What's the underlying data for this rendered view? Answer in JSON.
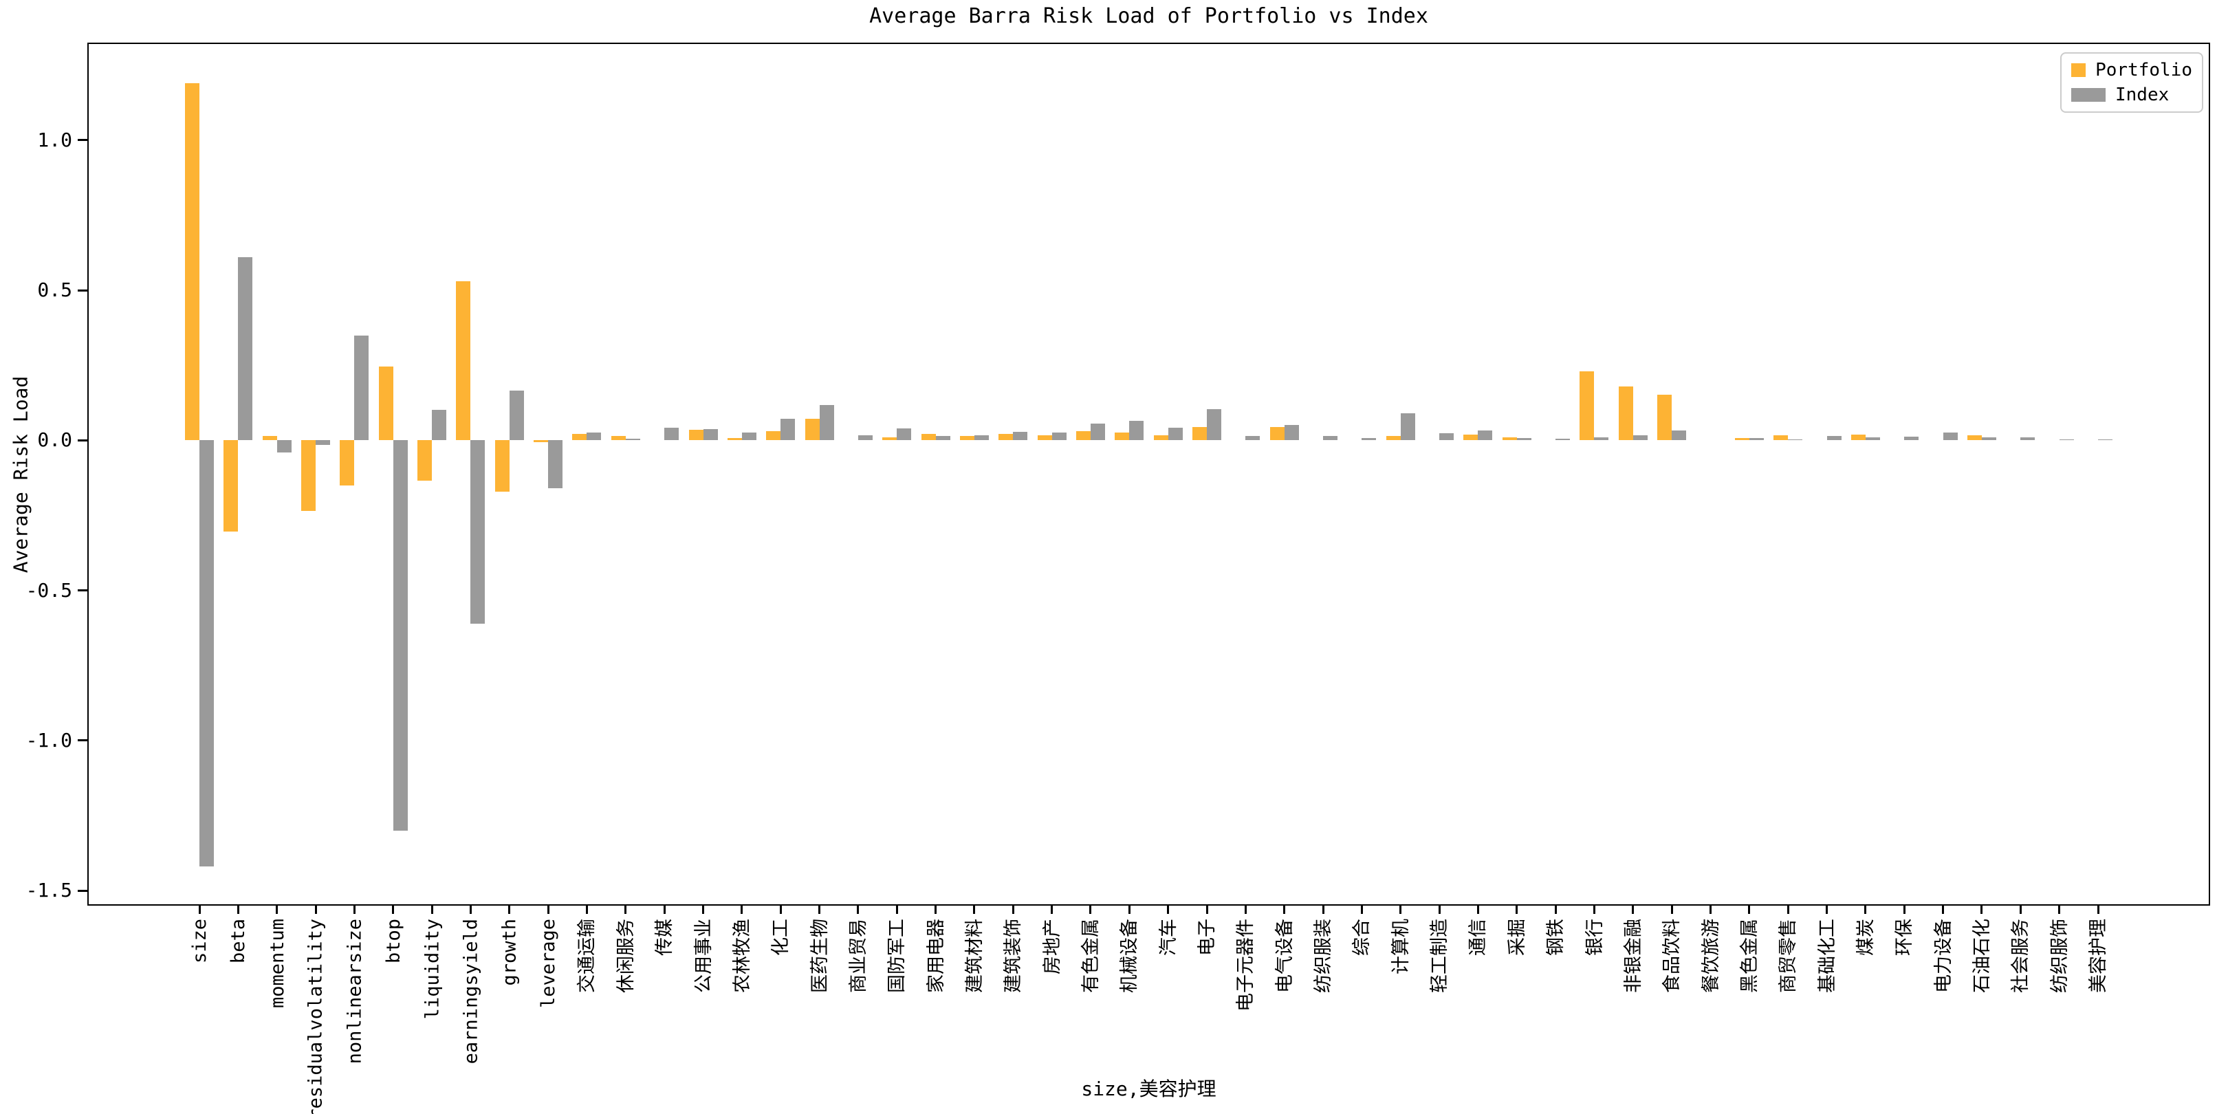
{
  "title": "Average Barra Risk Load of Portfolio vs Index",
  "legend": {
    "portfolio_label": "Portfolio",
    "index_label": "Index"
  },
  "colors": {
    "portfolio": "#FDB334",
    "index": "#9A9A9A",
    "axis": "#000000",
    "legend_border": "#cccccc"
  },
  "chart_data": {
    "type": "bar",
    "title": "Average Barra Risk Load of Portfolio vs Index",
    "xlabel": "size,美容护理",
    "ylabel": "Average Risk Load",
    "ylim": [
      -1.55,
      1.325
    ],
    "yticks": [
      1.0,
      0.5,
      0.0,
      -0.5,
      -1.0,
      -1.5
    ],
    "grid": false,
    "legend_position": "upper right",
    "categories": [
      "size",
      "beta",
      "momentum",
      "residualvolatility",
      "nonlinearsize",
      "btop",
      "liquidity",
      "earningsyield",
      "growth",
      "leverage",
      "交通运输",
      "休闲服务",
      "传媒",
      "公用事业",
      "农林牧渔",
      "化工",
      "医药生物",
      "商业贸易",
      "国防军工",
      "家用电器",
      "建筑材料",
      "建筑装饰",
      "房地产",
      "有色金属",
      "机械设备",
      "汽车",
      "电子",
      "电子元器件",
      "电气设备",
      "纺织服装",
      "综合",
      "计算机",
      "轻工制造",
      "通信",
      "采掘",
      "钢铁",
      "银行",
      "非银金融",
      "食品饮料",
      "餐饮旅游",
      "黑色金属",
      "商贸零售",
      "基础化工",
      "煤炭",
      "环保",
      "电力设备",
      "石油石化",
      "社会服务",
      "纺织服饰",
      "美容护理"
    ],
    "series": [
      {
        "name": "Portfolio",
        "color": "#FDB334",
        "values": [
          1.19,
          -0.303,
          0.015,
          -0.235,
          -0.15,
          0.245,
          -0.134,
          0.53,
          -0.17,
          -0.007,
          0.021,
          0.015,
          0.0,
          0.035,
          0.007,
          0.031,
          0.073,
          0.0,
          0.01,
          0.021,
          0.014,
          0.022,
          0.018,
          0.031,
          0.026,
          0.018,
          0.044,
          0.0,
          0.044,
          0.0,
          0.0,
          0.014,
          0.0,
          0.02,
          0.011,
          0.0,
          0.23,
          0.179,
          0.152,
          0.0,
          0.007,
          0.016,
          0.0,
          0.019,
          0.0,
          0.0,
          0.018,
          0.0,
          0.0,
          0.0
        ]
      },
      {
        "name": "Index",
        "color": "#9A9A9A",
        "values": [
          -1.42,
          0.61,
          -0.04,
          -0.015,
          0.35,
          -1.3,
          0.102,
          -0.61,
          0.165,
          -0.16,
          0.027,
          0.005,
          0.042,
          0.037,
          0.026,
          0.073,
          0.117,
          0.018,
          0.039,
          0.014,
          0.018,
          0.028,
          0.025,
          0.055,
          0.066,
          0.042,
          0.103,
          0.014,
          0.051,
          0.015,
          0.007,
          0.09,
          0.023,
          0.033,
          0.008,
          0.006,
          0.01,
          0.018,
          0.032,
          0.0,
          0.008,
          0.004,
          0.014,
          0.01,
          0.012,
          0.026,
          0.009,
          0.01,
          0.004,
          0.003
        ]
      }
    ]
  }
}
